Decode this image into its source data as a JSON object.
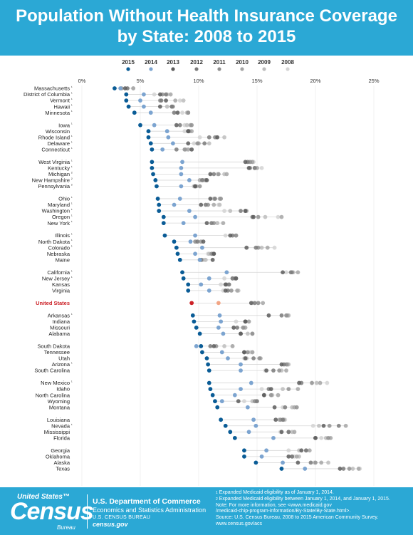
{
  "header": {
    "title_line1": "Population Without Health Insurance Coverage",
    "title_line2": "by State: 2008 to 2015"
  },
  "colors": {
    "header_bg": "#2ba8d5",
    "years": {
      "2015": "#0a5c96",
      "2014": "#7ca4d0",
      "2013": "#5c5c5c",
      "2012": "#7a7a7a",
      "2011": "#909090",
      "2010": "#a6a6a6",
      "2009": "#bdbdbd",
      "2008": "#d4d4d4"
    },
    "us_2015": "#cc2127",
    "us_2014": "#f2a584",
    "us_label": "#cc2127",
    "connector": "#d7d7d7",
    "gridline": "#e6e6e6"
  },
  "chart_data": {
    "type": "dot plot",
    "units": "percent",
    "xlim": [
      0,
      25
    ],
    "x_ticks": [
      "0%",
      "5%",
      "10%",
      "15%",
      "20%",
      "25%"
    ],
    "legend_position": "top",
    "years": [
      "2015",
      "2014",
      "2013",
      "2012",
      "2011",
      "2010",
      "2009",
      "2008"
    ],
    "footnote_marks": {
      "1": "¹",
      "2": "²"
    },
    "groups": [
      [
        {
          "state": "Massachusetts",
          "fn": "1",
          "values": [
            2.8,
            3.3,
            3.7,
            3.9,
            3.4,
            4.4,
            4.4,
            3.9
          ]
        },
        {
          "state": "District of Columbia",
          "fn": "1",
          "values": [
            3.8,
            5.3,
            6.7,
            7.2,
            6.9,
            7.6,
            7.3,
            6.2
          ]
        },
        {
          "state": "Vermont",
          "fn": "1",
          "values": [
            3.8,
            5.0,
            7.2,
            6.8,
            6.7,
            8.0,
            8.7,
            8.4
          ]
        },
        {
          "state": "Hawaii",
          "fn": "1",
          "values": [
            4.0,
            5.3,
            6.7,
            7.7,
            7.8,
            7.7,
            7.3,
            7.3
          ]
        },
        {
          "state": "Minnesota",
          "fn": "1",
          "values": [
            4.5,
            5.9,
            8.2,
            7.9,
            9.1,
            9.1,
            9.0,
            8.6
          ]
        }
      ],
      [
        {
          "state": "Iowa",
          "fn": "1",
          "values": [
            5.0,
            6.2,
            8.1,
            8.4,
            9.4,
            9.3,
            9.0,
            8.8
          ]
        },
        {
          "state": "Wisconsin",
          "fn": "",
          "values": [
            5.7,
            7.3,
            9.1,
            9.1,
            9.2,
            9.4,
            9.1,
            8.8
          ]
        },
        {
          "state": "Rhode Island",
          "fn": "1",
          "values": [
            5.7,
            7.4,
            11.6,
            10.9,
            11.4,
            11.5,
            12.2,
            10.1
          ]
        },
        {
          "state": "Delaware",
          "fn": "1",
          "values": [
            5.9,
            7.8,
            9.1,
            10.5,
            9.9,
            10.0,
            10.9,
            9.6
          ]
        },
        {
          "state": "Connecticut",
          "fn": "1",
          "values": [
            6.0,
            6.9,
            9.4,
            8.1,
            8.8,
            9.1,
            8.9,
            9.4
          ]
        }
      ],
      [
        {
          "state": "West Virginia",
          "fn": "1",
          "values": [
            6.0,
            8.6,
            14.0,
            14.2,
            14.4,
            14.6,
            14.6,
            14.7
          ]
        },
        {
          "state": "Kentucky",
          "fn": "1",
          "values": [
            6.0,
            8.5,
            14.3,
            14.8,
            14.4,
            15.0,
            14.8,
            15.4
          ]
        },
        {
          "state": "Michigan",
          "fn": "2",
          "values": [
            6.1,
            8.5,
            11.0,
            11.3,
            11.7,
            12.4,
            12.2,
            11.6
          ]
        },
        {
          "state": "New Hampshire",
          "fn": "2",
          "values": [
            6.3,
            9.2,
            10.7,
            10.3,
            10.6,
            10.1,
            10.4,
            10.6
          ]
        },
        {
          "state": "Pennsylvania",
          "fn": "2",
          "values": [
            6.4,
            8.5,
            9.7,
            9.7,
            10.1,
            9.8,
            9.6,
            9.6
          ]
        }
      ],
      [
        {
          "state": "Ohio",
          "fn": "1",
          "values": [
            6.5,
            8.4,
            11.0,
            11.4,
            11.9,
            11.8,
            11.3,
            11.3
          ]
        },
        {
          "state": "Maryland",
          "fn": "1",
          "values": [
            6.6,
            7.9,
            10.2,
            10.6,
            10.8,
            11.3,
            11.8,
            11.7
          ]
        },
        {
          "state": "Washington",
          "fn": "1",
          "values": [
            6.6,
            9.2,
            14.0,
            13.6,
            14.0,
            14.1,
            12.7,
            12.2
          ]
        },
        {
          "state": "Oregon",
          "fn": "1",
          "values": [
            7.0,
            9.7,
            14.7,
            14.6,
            15.1,
            17.1,
            15.7,
            16.8
          ]
        },
        {
          "state": "New York",
          "fn": "1",
          "values": [
            7.0,
            8.7,
            10.7,
            11.1,
            11.3,
            12.1,
            11.6,
            11.6
          ]
        }
      ],
      [
        {
          "state": "Illinois",
          "fn": "1",
          "values": [
            7.1,
            9.7,
            12.7,
            12.9,
            13.2,
            13.2,
            13.2,
            12.3
          ]
        },
        {
          "state": "North Dakota",
          "fn": "1",
          "values": [
            7.9,
            9.3,
            10.4,
            9.9,
            9.7,
            10.2,
            10.2,
            9.8
          ]
        },
        {
          "state": "Colorado",
          "fn": "1",
          "values": [
            8.1,
            10.3,
            14.1,
            14.9,
            15.1,
            15.9,
            15.4,
            16.5
          ]
        },
        {
          "state": "Nebraska",
          "fn": "",
          "values": [
            8.2,
            9.7,
            11.3,
            11.3,
            11.1,
            11.2,
            10.9,
            10.8
          ]
        },
        {
          "state": "Maine",
          "fn": "",
          "values": [
            8.4,
            10.1,
            11.2,
            10.2,
            10.1,
            10.3,
            10.6,
            10.5
          ]
        }
      ],
      [
        {
          "state": "California",
          "fn": "1",
          "values": [
            8.6,
            12.4,
            17.2,
            17.9,
            18.0,
            18.5,
            18.1,
            17.5
          ]
        },
        {
          "state": "New Jersey",
          "fn": "1",
          "values": [
            8.7,
            10.9,
            13.2,
            12.9,
            13.1,
            13.2,
            12.9,
            12.2
          ]
        },
        {
          "state": "Kansas",
          "fn": "",
          "values": [
            9.1,
            10.2,
            12.3,
            12.6,
            12.4,
            12.6,
            12.3,
            11.9
          ]
        },
        {
          "state": "Virginia",
          "fn": "",
          "values": [
            9.1,
            10.9,
            12.3,
            12.5,
            12.8,
            13.3,
            13.4,
            12.1
          ]
        }
      ],
      [
        {
          "state": "United States",
          "fn": "",
          "us": true,
          "values": [
            9.4,
            11.7,
            14.5,
            14.8,
            15.1,
            15.5,
            15.1,
            14.6
          ]
        }
      ],
      [
        {
          "state": "Arkansas",
          "fn": "1",
          "values": [
            9.5,
            11.8,
            16.0,
            17.1,
            17.5,
            17.6,
            17.7,
            17.7
          ]
        },
        {
          "state": "Indiana",
          "fn": "",
          "values": [
            9.6,
            11.9,
            14.0,
            14.0,
            14.0,
            14.3,
            14.3,
            13.2
          ]
        },
        {
          "state": "Missouri",
          "fn": "",
          "values": [
            9.8,
            11.7,
            13.0,
            13.3,
            13.8,
            14.0,
            13.9,
            13.0
          ]
        },
        {
          "state": "Alabama",
          "fn": "",
          "values": [
            10.1,
            12.1,
            13.6,
            13.6,
            14.6,
            14.6,
            14.2,
            13.6
          ]
        }
      ],
      [
        {
          "state": "South Dakota",
          "fn": "",
          "values": [
            10.2,
            9.8,
            11.3,
            11.0,
            11.5,
            12.9,
            12.2,
            12.9
          ]
        },
        {
          "state": "Tennessee",
          "fn": "",
          "values": [
            10.3,
            12.0,
            13.9,
            13.9,
            14.2,
            14.6,
            14.6,
            14.4
          ]
        },
        {
          "state": "Utah",
          "fn": "",
          "values": [
            10.7,
            12.5,
            14.0,
            14.7,
            15.2,
            15.3,
            14.1,
            13.9
          ]
        },
        {
          "state": "Arizona",
          "fn": "1",
          "values": [
            10.8,
            13.6,
            17.1,
            17.3,
            17.5,
            17.6,
            17.7,
            17.6
          ]
        },
        {
          "state": "South Carolina",
          "fn": "",
          "values": [
            10.9,
            13.6,
            15.8,
            16.4,
            16.9,
            17.5,
            17.1,
            15.7
          ]
        }
      ],
      [
        {
          "state": "New Mexico",
          "fn": "1",
          "values": [
            10.9,
            14.5,
            18.6,
            18.8,
            19.7,
            20.4,
            20.1,
            21.0
          ]
        },
        {
          "state": "Idaho",
          "fn": "",
          "values": [
            11.0,
            13.6,
            16.2,
            16.0,
            17.7,
            18.5,
            17.2,
            15.4
          ]
        },
        {
          "state": "North Carolina",
          "fn": "",
          "values": [
            11.2,
            13.1,
            15.6,
            15.6,
            16.2,
            16.8,
            16.3,
            15.6
          ]
        },
        {
          "state": "Wyoming",
          "fn": "",
          "values": [
            11.4,
            12.0,
            13.4,
            15.0,
            14.8,
            14.9,
            14.6,
            13.9
          ]
        },
        {
          "state": "Montana",
          "fn": "",
          "values": [
            11.6,
            14.2,
            16.5,
            17.4,
            18.4,
            18.2,
            18.0,
            17.2
          ]
        }
      ],
      [
        {
          "state": "Louisiana",
          "fn": "",
          "values": [
            11.9,
            14.7,
            16.6,
            17.2,
            17.0,
            17.3,
            16.9,
            17.4
          ]
        },
        {
          "state": "Nevada",
          "fn": "1",
          "values": [
            12.3,
            14.9,
            20.7,
            22.0,
            21.2,
            22.6,
            20.3,
            19.8
          ]
        },
        {
          "state": "Mississippi",
          "fn": "",
          "values": [
            12.7,
            14.3,
            17.1,
            17.7,
            17.7,
            18.2,
            18.0,
            17.0
          ]
        },
        {
          "state": "Florida",
          "fn": "",
          "values": [
            13.1,
            16.4,
            20.0,
            20.0,
            21.1,
            21.3,
            20.9,
            20.5
          ]
        }
      ],
      [
        {
          "state": "Georgia",
          "fn": "",
          "values": [
            13.9,
            15.8,
            18.8,
            19.2,
            19.2,
            19.5,
            18.6,
            17.7
          ]
        },
        {
          "state": "Oklahoma",
          "fn": "",
          "values": [
            13.9,
            15.4,
            17.7,
            18.0,
            18.0,
            18.4,
            18.6,
            18.2
          ]
        },
        {
          "state": "Alaska",
          "fn": "",
          "values": [
            14.9,
            17.2,
            18.5,
            19.6,
            20.0,
            20.5,
            21.1,
            19.9
          ]
        },
        {
          "state": "Texas",
          "fn": "",
          "values": [
            17.1,
            19.1,
            22.1,
            22.4,
            22.9,
            23.7,
            23.2,
            23.8
          ]
        }
      ]
    ]
  },
  "footer": {
    "logo_top": "United States™",
    "logo_main": "Census",
    "logo_sub": "Bureau",
    "agency_1": "U.S. Department of Commerce",
    "agency_2": "Economics and Statistics Administration",
    "agency_3": "U.S. CENSUS BUREAU",
    "agency_4": "census.gov",
    "note_mark_1": "1",
    "note_1": "Expanded Medicaid eligibility as of January 1, 2014.",
    "note_mark_2": "2",
    "note_2": "Expanded Medicaid eligibility between January 1, 2014, and January 1, 2015.",
    "note_3": "Note: For more information, see <www.medicaid.gov",
    "note_4": "/medicaid-chip-program-information/By-State/By-State.html>.",
    "note_5": "Source: U.S. Census Bureau, 2008 to 2015 American Community Survey.",
    "note_6": "www.census.gov/acs"
  }
}
